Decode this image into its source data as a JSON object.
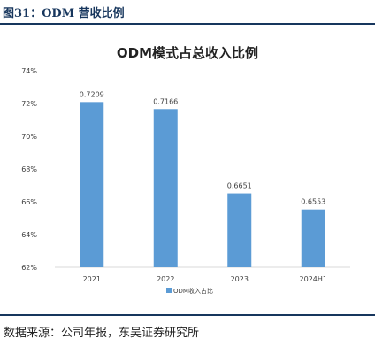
{
  "figure": {
    "label": "图31：ODM 营收比例",
    "source": "数据来源：公司年报，东吴证券研究所"
  },
  "colors": {
    "bar": "#5b9bd5",
    "header": "#17365d",
    "axis": "#d9d9d9",
    "text": "#404040"
  },
  "chart_data": {
    "type": "bar",
    "title": "ODM模式占总收入比例",
    "categories": [
      "2021",
      "2022",
      "2023",
      "2024H1"
    ],
    "series": [
      {
        "name": "ODM收入占比",
        "values": [
          0.7209,
          0.7166,
          0.6651,
          0.6553
        ]
      }
    ],
    "data_labels": [
      "0.7209",
      "0.7166",
      "0.6651",
      "0.6553"
    ],
    "y_ticks": [
      "62%",
      "64%",
      "66%",
      "68%",
      "70%",
      "72%",
      "74%"
    ],
    "ylim": [
      0.62,
      0.74
    ],
    "grid": false,
    "legend_position": "bottom"
  }
}
